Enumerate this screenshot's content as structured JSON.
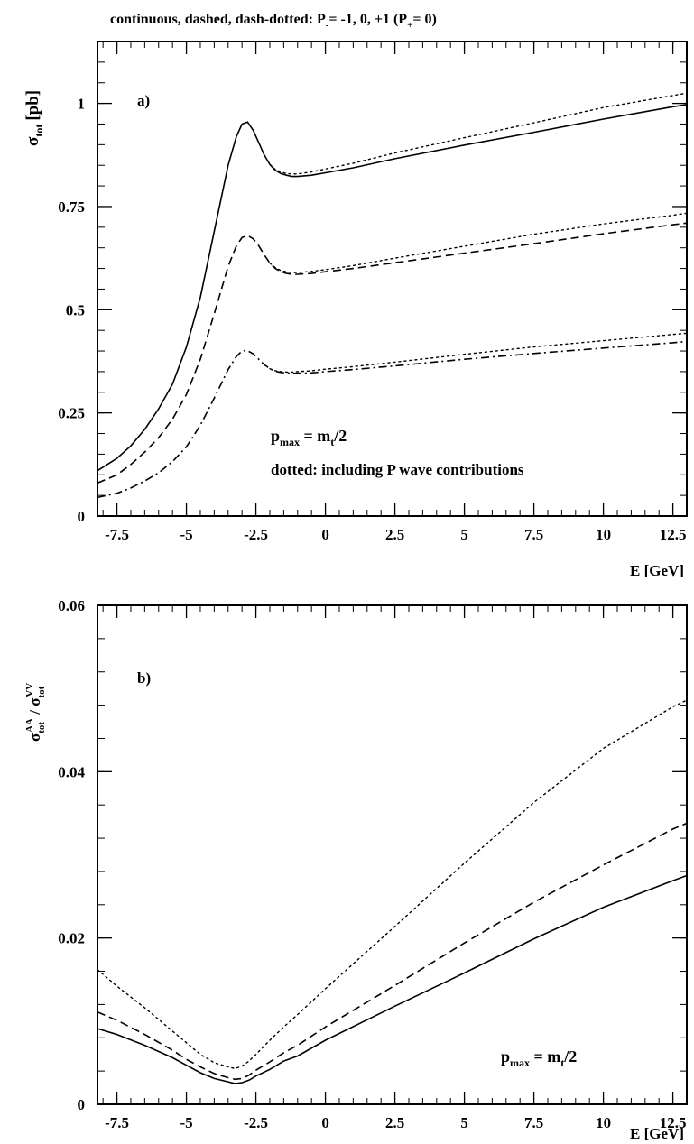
{
  "header": {
    "text": "continuous, dashed, dash-dotted: P",
    "sub_minus": "-",
    "text2": "= -1, 0, +1  (P",
    "sub_plus": "+",
    "text3": "= 0)"
  },
  "chart_data": [
    {
      "type": "line",
      "panel_label": "a)",
      "xlabel": "E [GeV]",
      "ylabel": {
        "main": "σ",
        "sub": "tot",
        "unit": "[pb]"
      },
      "xlim": [
        -8.2,
        13.0
      ],
      "ylim": [
        0,
        1.15
      ],
      "xticks": [
        -7.5,
        -5,
        -2.5,
        0,
        2.5,
        5,
        7.5,
        10,
        12.5
      ],
      "xtick_labels": [
        "-7.5",
        "-5",
        "-2.5",
        "0",
        "2.5",
        "5",
        "7.5",
        "10",
        "12.5"
      ],
      "yticks": [
        0,
        0.25,
        0.5,
        0.75,
        1
      ],
      "ytick_labels": [
        "0",
        "0.25",
        "0.5",
        "0.75",
        "1"
      ],
      "annotations": {
        "pmax_main": "p",
        "pmax_sub": "max",
        "pmax_mid": " = m",
        "pmax_sub2": "t",
        "pmax_end": "/2",
        "dotted_note": "dotted: including P wave contributions"
      },
      "x": [
        -8.2,
        -7.5,
        -7.0,
        -6.5,
        -6.0,
        -5.5,
        -5.0,
        -4.5,
        -4.0,
        -3.5,
        -3.2,
        -3.0,
        -2.8,
        -2.6,
        -2.4,
        -2.2,
        -2.0,
        -1.8,
        -1.6,
        -1.4,
        -1.2,
        -1.0,
        -0.5,
        0,
        1,
        2.5,
        5,
        7.5,
        10,
        12.5,
        13.0
      ],
      "series": [
        {
          "style": "solid",
          "values": [
            0.11,
            0.14,
            0.17,
            0.21,
            0.26,
            0.32,
            0.41,
            0.53,
            0.69,
            0.85,
            0.92,
            0.95,
            0.955,
            0.935,
            0.905,
            0.875,
            0.852,
            0.838,
            0.83,
            0.826,
            0.823,
            0.823,
            0.826,
            0.832,
            0.844,
            0.866,
            0.899,
            0.93,
            0.962,
            0.992,
            0.997
          ]
        },
        {
          "style": "dashed",
          "values": [
            0.08,
            0.1,
            0.125,
            0.155,
            0.19,
            0.235,
            0.295,
            0.38,
            0.49,
            0.605,
            0.655,
            0.675,
            0.68,
            0.672,
            0.655,
            0.633,
            0.613,
            0.6,
            0.592,
            0.588,
            0.586,
            0.586,
            0.588,
            0.592,
            0.6,
            0.614,
            0.637,
            0.66,
            0.684,
            0.706,
            0.71
          ]
        },
        {
          "style": "dashdot",
          "values": [
            0.045,
            0.055,
            0.068,
            0.085,
            0.105,
            0.132,
            0.168,
            0.22,
            0.286,
            0.355,
            0.387,
            0.4,
            0.401,
            0.393,
            0.38,
            0.367,
            0.357,
            0.351,
            0.348,
            0.347,
            0.346,
            0.346,
            0.347,
            0.35,
            0.355,
            0.364,
            0.38,
            0.394,
            0.407,
            0.42,
            0.423
          ]
        },
        {
          "style": "dotted",
          "values": [
            null,
            null,
            null,
            null,
            null,
            null,
            null,
            null,
            null,
            null,
            null,
            null,
            null,
            null,
            null,
            null,
            0.852,
            0.84,
            0.834,
            0.83,
            0.829,
            0.829,
            0.834,
            0.841,
            0.855,
            0.88,
            0.917,
            0.953,
            0.99,
            1.019,
            1.025
          ]
        },
        {
          "style": "dotted",
          "values": [
            null,
            null,
            null,
            null,
            null,
            null,
            null,
            null,
            null,
            null,
            null,
            null,
            null,
            null,
            null,
            null,
            0.613,
            0.602,
            0.595,
            0.592,
            0.59,
            0.59,
            0.593,
            0.597,
            0.607,
            0.625,
            0.654,
            0.683,
            0.708,
            0.729,
            0.734
          ]
        },
        {
          "style": "dotted",
          "values": [
            null,
            null,
            null,
            null,
            null,
            null,
            null,
            null,
            null,
            null,
            null,
            null,
            null,
            null,
            null,
            null,
            0.357,
            0.352,
            0.35,
            0.349,
            0.349,
            0.35,
            0.352,
            0.356,
            0.362,
            0.373,
            0.392,
            0.41,
            0.425,
            0.44,
            0.443
          ]
        }
      ]
    },
    {
      "type": "line",
      "panel_label": "b)",
      "xlabel": "E [GeV]",
      "ylabel": {
        "main": "σ",
        "sub": "tot",
        "sup": "AA",
        "mid": " / σ",
        "sub2": "tot",
        "sup2": "VV"
      },
      "xlim": [
        -8.2,
        13.0
      ],
      "ylim": [
        0,
        0.06
      ],
      "xticks": [
        -7.5,
        -5,
        -2.5,
        0,
        2.5,
        5,
        7.5,
        10,
        12.5
      ],
      "xtick_labels": [
        "-7.5",
        "-5",
        "-2.5",
        "0",
        "2.5",
        "5",
        "7.5",
        "10",
        "12.5"
      ],
      "yticks": [
        0,
        0.02,
        0.04,
        0.06
      ],
      "ytick_labels": [
        "0",
        "0.02",
        "0.04",
        "0.06"
      ],
      "annotations": {
        "pmax_main": "p",
        "pmax_sub": "max",
        "pmax_mid": " = m",
        "pmax_sub2": "t",
        "pmax_end": "/2"
      },
      "x": [
        -8.2,
        -7.5,
        -6.5,
        -5.5,
        -5.0,
        -4.5,
        -4.0,
        -3.5,
        -3.25,
        -3.0,
        -2.75,
        -2.5,
        -2.0,
        -1.5,
        -1.0,
        0,
        2.5,
        5,
        7.5,
        10,
        12.5,
        13.0
      ],
      "series": [
        {
          "style": "solid",
          "values": [
            0.0091,
            0.0084,
            0.0071,
            0.0056,
            0.0047,
            0.0038,
            0.0031,
            0.0027,
            0.0025,
            0.0026,
            0.0029,
            0.0034,
            0.0042,
            0.0052,
            0.0058,
            0.0077,
            0.0118,
            0.0158,
            0.0199,
            0.0237,
            0.0269,
            0.0275
          ]
        },
        {
          "style": "dashed",
          "values": [
            0.0111,
            0.0101,
            0.0084,
            0.0065,
            0.0054,
            0.0045,
            0.0037,
            0.0032,
            0.003,
            0.0031,
            0.0035,
            0.0041,
            0.0051,
            0.0062,
            0.0071,
            0.0093,
            0.0143,
            0.0194,
            0.0243,
            0.0288,
            0.0331,
            0.0338
          ]
        },
        {
          "style": "dotted",
          "values": [
            0.0162,
            0.0142,
            0.0116,
            0.0088,
            0.0074,
            0.006,
            0.005,
            0.0045,
            0.0043,
            0.0046,
            0.0052,
            0.006,
            0.0077,
            0.0093,
            0.0108,
            0.0139,
            0.0214,
            0.029,
            0.0363,
            0.0428,
            0.0478,
            0.0486
          ]
        }
      ]
    }
  ]
}
